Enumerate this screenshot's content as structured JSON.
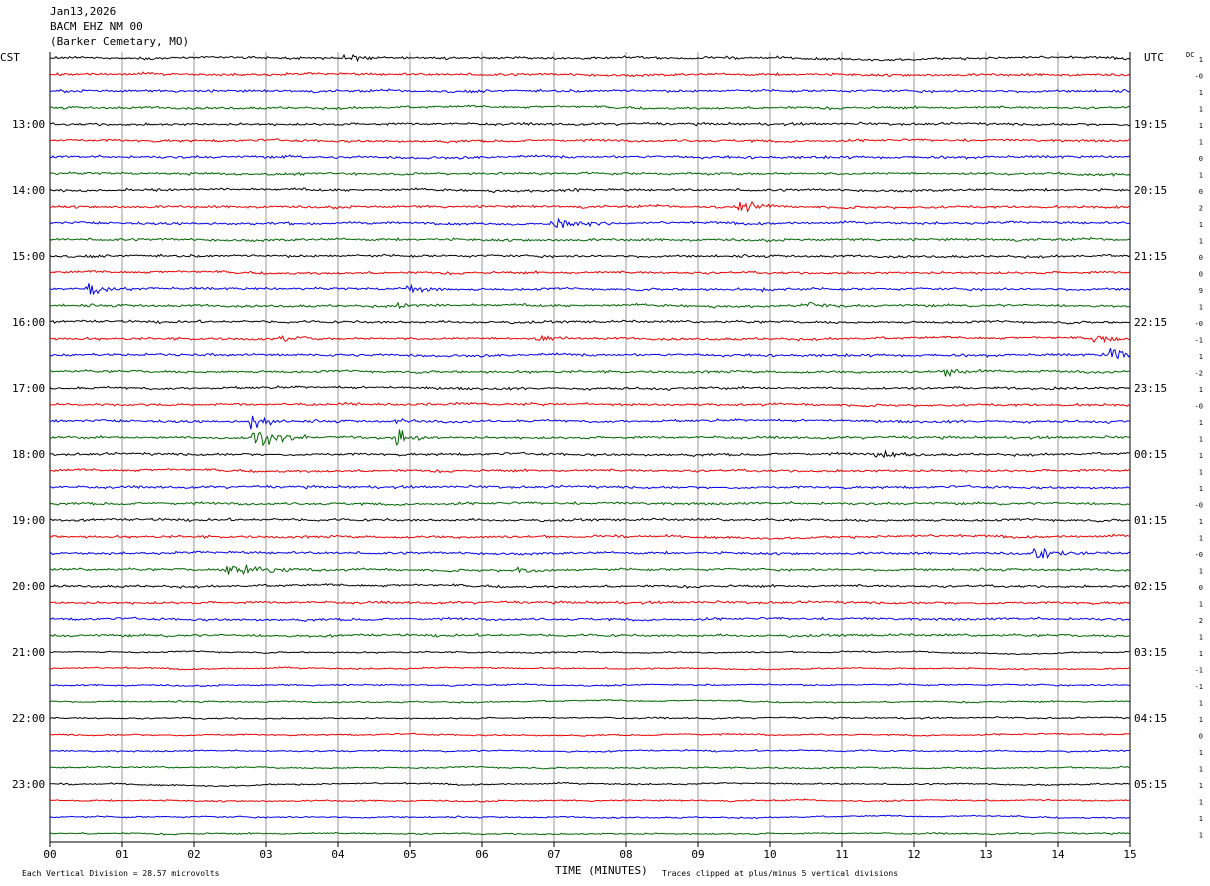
{
  "header": {
    "date": "Jan13,2026",
    "station": "BACM EHZ NM 00",
    "location": "(Barker Cemetary, MO)"
  },
  "labels": {
    "left_zone": "CST",
    "right_zone": "UTC",
    "dc_label": "DC",
    "x_title": "TIME (MINUTES)",
    "scale_note": "Each Vertical Division =   28.57 microvolts",
    "clip_note": "Traces clipped at plus/minus 5 vertical divisions"
  },
  "chart_data": {
    "type": "line",
    "title": "",
    "xlabel": "TIME (MINUTES)",
    "ylabel": "",
    "xlim": [
      0,
      15
    ],
    "x_ticks": [
      "00",
      "01",
      "02",
      "03",
      "04",
      "05",
      "06",
      "07",
      "08",
      "09",
      "10",
      "11",
      "12",
      "13",
      "14",
      "15"
    ],
    "grid": "vertical lines each minute",
    "trace_count": 48,
    "trace_colors": [
      "#000000",
      "#ee0000",
      "#0000ee",
      "#006600"
    ],
    "left_hour_labels": [
      {
        "trace": 4,
        "label": "13:00"
      },
      {
        "trace": 8,
        "label": "14:00"
      },
      {
        "trace": 12,
        "label": "15:00"
      },
      {
        "trace": 16,
        "label": "16:00"
      },
      {
        "trace": 20,
        "label": "17:00"
      },
      {
        "trace": 24,
        "label": "18:00"
      },
      {
        "trace": 28,
        "label": "19:00"
      },
      {
        "trace": 32,
        "label": "20:00"
      },
      {
        "trace": 36,
        "label": "21:00"
      },
      {
        "trace": 40,
        "label": "22:00"
      },
      {
        "trace": 44,
        "label": "23:00"
      }
    ],
    "right_hour_labels": [
      {
        "trace": 4,
        "label": "19:15"
      },
      {
        "trace": 8,
        "label": "20:15"
      },
      {
        "trace": 12,
        "label": "21:15"
      },
      {
        "trace": 16,
        "label": "22:15"
      },
      {
        "trace": 20,
        "label": "23:15"
      },
      {
        "trace": 24,
        "label": "00:15"
      },
      {
        "trace": 28,
        "label": "01:15"
      },
      {
        "trace": 32,
        "label": "02:15"
      },
      {
        "trace": 36,
        "label": "03:15"
      },
      {
        "trace": 40,
        "label": "04:15"
      },
      {
        "trace": 44,
        "label": "05:15"
      }
    ],
    "dc_offsets": [
      "1",
      "-0",
      "1",
      "1",
      "1",
      "1",
      "0",
      "1",
      "0",
      "2",
      "1",
      "1",
      "0",
      "0",
      "9",
      "1",
      "-0",
      "-1",
      "1",
      "-2",
      "1",
      "-0",
      "1",
      "1",
      "1",
      "1",
      "1",
      "-0",
      "1",
      "1",
      "-0",
      "1",
      "0",
      "1",
      "2",
      "1",
      "1",
      "-1",
      "-1",
      "1",
      "1",
      "0",
      "1",
      "1",
      "1",
      "1",
      "1",
      "1"
    ],
    "events": [
      {
        "trace": 0,
        "minute": 4.1,
        "amplitude": 5,
        "duration": 0.4
      },
      {
        "trace": 6,
        "minute": 3.3,
        "amplitude": 1.2,
        "duration": 0.4
      },
      {
        "trace": 8,
        "minute": 7.1,
        "amplitude": 1.0,
        "duration": 0.3
      },
      {
        "trace": 9,
        "minute": 9.6,
        "amplitude": 4,
        "duration": 0.6
      },
      {
        "trace": 10,
        "minute": 7.0,
        "amplitude": 4,
        "duration": 0.9
      },
      {
        "trace": 14,
        "minute": 0.55,
        "amplitude": 4.5,
        "duration": 0.6
      },
      {
        "trace": 14,
        "minute": 4.9,
        "amplitude": 2.5,
        "duration": 0.7
      },
      {
        "trace": 14,
        "minute": 9.8,
        "amplitude": 1.0,
        "duration": 0.5
      },
      {
        "trace": 15,
        "minute": 4.8,
        "amplitude": 3.0,
        "duration": 0.7
      },
      {
        "trace": 15,
        "minute": 10.5,
        "amplitude": 3.0,
        "duration": 0.5
      },
      {
        "trace": 17,
        "minute": 3.2,
        "amplitude": 3.0,
        "duration": 0.4
      },
      {
        "trace": 17,
        "minute": 6.8,
        "amplitude": 2.5,
        "duration": 0.4
      },
      {
        "trace": 17,
        "minute": 14.5,
        "amplitude": 3.0,
        "duration": 0.5
      },
      {
        "trace": 18,
        "minute": 14.7,
        "amplitude": 5,
        "duration": 0.5
      },
      {
        "trace": 19,
        "minute": 12.4,
        "amplitude": 3.5,
        "duration": 0.6
      },
      {
        "trace": 22,
        "minute": 2.8,
        "amplitude": 5,
        "duration": 0.6
      },
      {
        "trace": 22,
        "minute": 4.8,
        "amplitude": 2.5,
        "duration": 0.4
      },
      {
        "trace": 23,
        "minute": 2.85,
        "amplitude": 5,
        "duration": 0.9
      },
      {
        "trace": 23,
        "minute": 4.8,
        "amplitude": 4,
        "duration": 0.7
      },
      {
        "trace": 24,
        "minute": 11.5,
        "amplitude": 2.5,
        "duration": 0.6
      },
      {
        "trace": 30,
        "minute": 13.7,
        "amplitude": 4,
        "duration": 0.7
      },
      {
        "trace": 31,
        "minute": 2.5,
        "amplitude": 5,
        "duration": 1.2
      },
      {
        "trace": 31,
        "minute": 6.5,
        "amplitude": 2.5,
        "duration": 0.5
      }
    ]
  }
}
